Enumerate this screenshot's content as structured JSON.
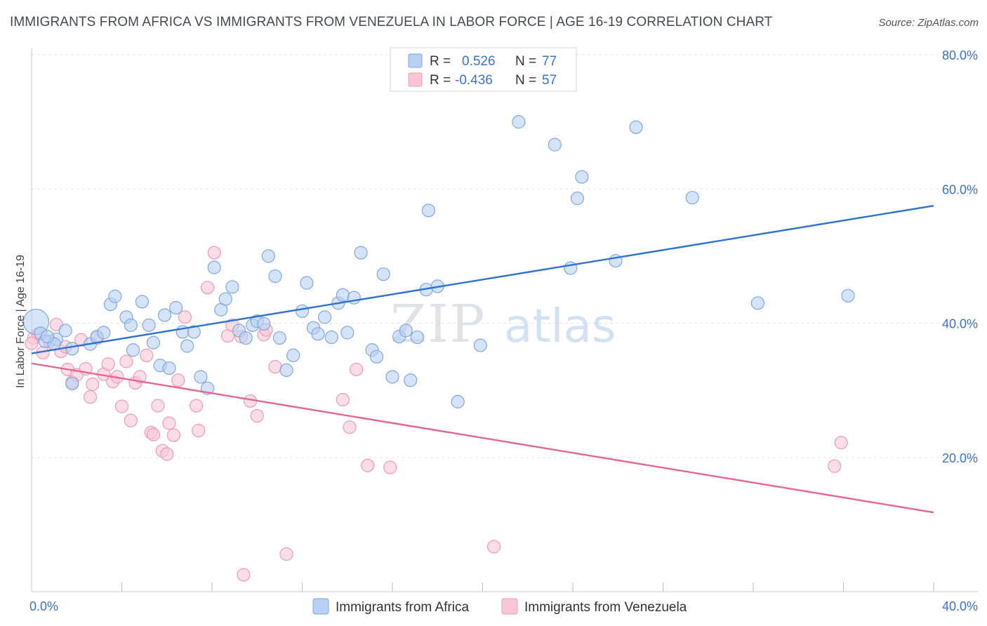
{
  "title": "IMMIGRANTS FROM AFRICA VS IMMIGRANTS FROM VENEZUELA IN LABOR FORCE | AGE 16-19 CORRELATION CHART",
  "source": "Source: ZipAtlas.com",
  "watermark": {
    "zip": "ZIP",
    "atlas": "atlas"
  },
  "colors": {
    "africa_fill": "#b7d0f3",
    "africa_stroke": "#7fa8e0",
    "africa_line": "#2f72d0",
    "venezuela_fill": "#f8c6d6",
    "venezuela_stroke": "#ee9ab5",
    "venezuela_line": "#e4678f",
    "tick_label": "#3c74c7",
    "grid": "#e3e3e3"
  },
  "legend_top": [
    {
      "r_label": "R =",
      "r_value": "0.526",
      "n_label": "N =",
      "n_value": "77"
    },
    {
      "r_label": "R =",
      "r_value": "-0.436",
      "n_label": "N =",
      "n_value": "57"
    }
  ],
  "chart_data": {
    "type": "scatter",
    "title": "IMMIGRANTS FROM AFRICA VS IMMIGRANTS FROM VENEZUELA IN LABOR FORCE | AGE 16-19 CORRELATION CHART",
    "xlabel": "",
    "ylabel": "In Labor Force | Age 16-19",
    "xlim": [
      0,
      40
    ],
    "ylim": [
      0,
      80
    ],
    "x_tick_labels": [
      "0.0%",
      "40.0%"
    ],
    "y_ticks": [
      20,
      40,
      60,
      80
    ],
    "y_tick_labels": [
      "20.0%",
      "40.0%",
      "60.0%",
      "80.0%"
    ],
    "grid": true,
    "legend_position": "bottom",
    "series": [
      {
        "name": "Immigrants from Africa",
        "r": 0.526,
        "n": 77,
        "trend": [
          [
            0,
            35.5
          ],
          [
            40,
            57.5
          ]
        ],
        "points": [
          [
            0.2,
            40.2
          ],
          [
            0.4,
            38.5
          ],
          [
            0.6,
            37.3
          ],
          [
            1.1,
            37.6
          ],
          [
            1.0,
            36.9
          ],
          [
            1.5,
            38.9
          ],
          [
            1.8,
            36.2
          ],
          [
            1.8,
            31.0
          ],
          [
            2.6,
            36.9
          ],
          [
            2.9,
            38.0
          ],
          [
            3.2,
            38.6
          ],
          [
            3.5,
            42.8
          ],
          [
            3.7,
            44.0
          ],
          [
            4.2,
            40.9
          ],
          [
            4.4,
            39.7
          ],
          [
            4.5,
            36.0
          ],
          [
            4.9,
            43.2
          ],
          [
            5.2,
            39.7
          ],
          [
            5.4,
            37.1
          ],
          [
            5.7,
            33.7
          ],
          [
            5.9,
            41.2
          ],
          [
            6.1,
            33.3
          ],
          [
            6.4,
            42.3
          ],
          [
            6.7,
            38.7
          ],
          [
            6.9,
            36.6
          ],
          [
            7.2,
            38.7
          ],
          [
            7.5,
            32.0
          ],
          [
            7.8,
            30.3
          ],
          [
            8.1,
            48.3
          ],
          [
            8.4,
            42.0
          ],
          [
            8.6,
            43.6
          ],
          [
            8.9,
            45.4
          ],
          [
            9.2,
            38.9
          ],
          [
            9.5,
            37.8
          ],
          [
            9.8,
            39.7
          ],
          [
            10.0,
            40.3
          ],
          [
            10.3,
            39.9
          ],
          [
            10.5,
            50.0
          ],
          [
            10.8,
            47.0
          ],
          [
            11.0,
            37.8
          ],
          [
            11.3,
            33.0
          ],
          [
            11.6,
            35.2
          ],
          [
            12.0,
            41.8
          ],
          [
            12.2,
            46.0
          ],
          [
            12.5,
            39.3
          ],
          [
            12.7,
            38.4
          ],
          [
            13.0,
            40.9
          ],
          [
            13.3,
            37.9
          ],
          [
            13.6,
            43.0
          ],
          [
            13.8,
            44.2
          ],
          [
            14.0,
            38.6
          ],
          [
            14.3,
            43.8
          ],
          [
            14.6,
            50.5
          ],
          [
            15.1,
            36.0
          ],
          [
            15.3,
            35.0
          ],
          [
            15.6,
            47.3
          ],
          [
            16.0,
            32.0
          ],
          [
            16.3,
            38.0
          ],
          [
            16.6,
            38.9
          ],
          [
            16.8,
            31.5
          ],
          [
            17.1,
            37.9
          ],
          [
            17.5,
            45.0
          ],
          [
            17.6,
            56.8
          ],
          [
            18.0,
            45.5
          ],
          [
            18.9,
            28.3
          ],
          [
            19.9,
            36.7
          ],
          [
            21.6,
            70.0
          ],
          [
            23.2,
            66.6
          ],
          [
            23.9,
            48.2
          ],
          [
            24.2,
            58.6
          ],
          [
            24.4,
            61.8
          ],
          [
            25.9,
            49.3
          ],
          [
            26.8,
            69.2
          ],
          [
            29.3,
            58.7
          ],
          [
            32.2,
            43.0
          ],
          [
            36.2,
            44.1
          ],
          [
            0.7,
            38.0
          ]
        ]
      },
      {
        "name": "Immigrants from Venezuela",
        "r": -0.436,
        "n": 57,
        "trend": [
          [
            0,
            34.0
          ],
          [
            40,
            11.8
          ]
        ],
        "points": [
          [
            0.1,
            37.8
          ],
          [
            0.3,
            38.4
          ],
          [
            0.5,
            35.6
          ],
          [
            0.8,
            37.3
          ],
          [
            1.1,
            39.8
          ],
          [
            1.3,
            35.8
          ],
          [
            1.5,
            36.5
          ],
          [
            1.6,
            33.1
          ],
          [
            1.8,
            31.2
          ],
          [
            2.0,
            32.3
          ],
          [
            2.2,
            37.5
          ],
          [
            2.4,
            33.2
          ],
          [
            2.6,
            29.0
          ],
          [
            2.7,
            30.9
          ],
          [
            2.9,
            37.8
          ],
          [
            3.2,
            32.4
          ],
          [
            3.4,
            33.9
          ],
          [
            3.6,
            31.3
          ],
          [
            3.8,
            32.0
          ],
          [
            4.0,
            27.6
          ],
          [
            4.2,
            34.3
          ],
          [
            4.4,
            25.5
          ],
          [
            4.6,
            31.1
          ],
          [
            4.8,
            32.0
          ],
          [
            5.1,
            35.2
          ],
          [
            5.3,
            23.7
          ],
          [
            5.4,
            23.4
          ],
          [
            5.6,
            27.7
          ],
          [
            5.8,
            21.0
          ],
          [
            6.0,
            20.5
          ],
          [
            6.1,
            25.1
          ],
          [
            6.3,
            23.3
          ],
          [
            6.5,
            31.5
          ],
          [
            6.8,
            40.9
          ],
          [
            7.3,
            27.7
          ],
          [
            7.4,
            24.0
          ],
          [
            7.8,
            45.3
          ],
          [
            8.1,
            50.5
          ],
          [
            8.7,
            38.1
          ],
          [
            8.9,
            39.7
          ],
          [
            9.3,
            38.0
          ],
          [
            9.4,
            2.5
          ],
          [
            9.7,
            28.4
          ],
          [
            10.0,
            26.2
          ],
          [
            10.3,
            38.3
          ],
          [
            10.4,
            39.0
          ],
          [
            10.8,
            33.5
          ],
          [
            11.3,
            5.6
          ],
          [
            13.8,
            28.6
          ],
          [
            14.1,
            24.5
          ],
          [
            14.4,
            33.1
          ],
          [
            14.9,
            18.8
          ],
          [
            15.9,
            18.5
          ],
          [
            20.5,
            6.7
          ],
          [
            35.6,
            18.7
          ],
          [
            35.9,
            22.2
          ],
          [
            0.0,
            37.0
          ]
        ]
      }
    ]
  }
}
